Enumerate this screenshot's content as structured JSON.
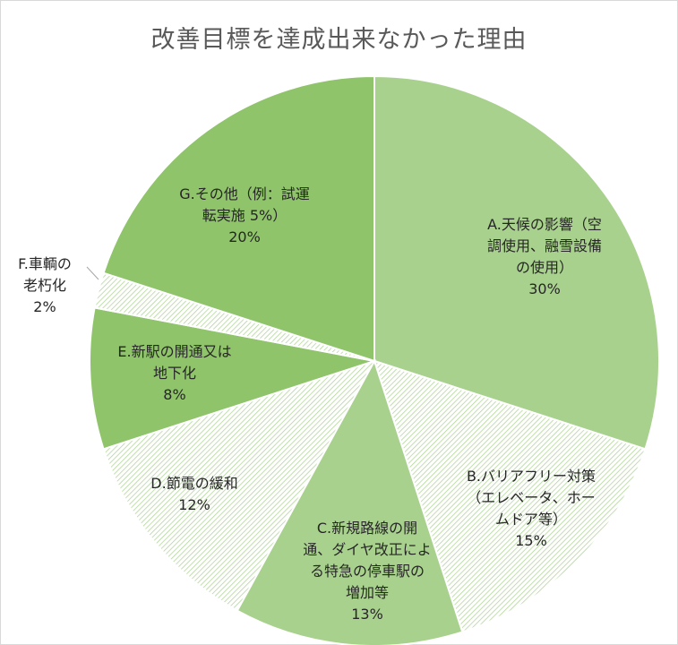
{
  "chart_data": {
    "type": "pie",
    "title": "改善目標を達成出来なかった理由",
    "slices": [
      {
        "label_lines": [
          "A.天候の影響（空",
          "調使用、融雪設備",
          "の使用）"
        ],
        "value": 30,
        "pct_label": "30%",
        "color": "#a9d18e",
        "hatched": false
      },
      {
        "label_lines": [
          "B.バリアフリー対策",
          "（エレベータ、ホー",
          "ムドア等）"
        ],
        "value": 15,
        "pct_label": "15%",
        "color": "#ffffff",
        "hatched": true
      },
      {
        "label_lines": [
          "C.新規路線の開",
          "通、ダイヤ改正によ",
          "る特急の停車駅の",
          "増加等"
        ],
        "value": 13,
        "pct_label": "13%",
        "color": "#a9d18e",
        "hatched": false
      },
      {
        "label_lines": [
          "D.節電の緩和"
        ],
        "value": 12,
        "pct_label": "12%",
        "color": "#ffffff",
        "hatched": true
      },
      {
        "label_lines": [
          "E.新駅の開通又は",
          "地下化"
        ],
        "value": 8,
        "pct_label": "8%",
        "color": "#8fc46b",
        "hatched": false
      },
      {
        "label_lines": [
          "F.車輌の",
          "老朽化"
        ],
        "value": 2,
        "pct_label": "2%",
        "color": "#ffffff",
        "hatched": true
      },
      {
        "label_lines": [
          "G.その他（例：試運",
          "転実施 5%）"
        ],
        "value": 20,
        "pct_label": "20%",
        "color": "#8fc46b",
        "hatched": false
      }
    ],
    "start_angle_deg": 0,
    "direction": "clockwise",
    "legend": "none",
    "labels_position": "on-slice"
  }
}
